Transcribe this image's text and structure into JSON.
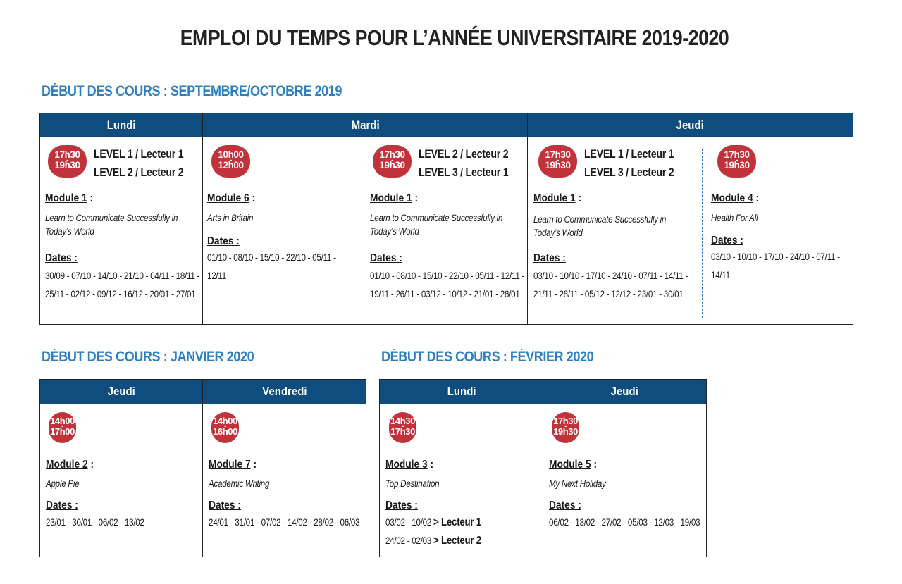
{
  "title": "EMPLOI DU TEMPS POUR L’ANNÉE UNIVERSITAIRE 2019-2020",
  "sections": {
    "sept": {
      "title": "DÉBUT DES COURS : SEPTEMBRE/OCTOBRE 2019",
      "days": [
        "Lundi",
        "Mardi",
        "Jeudi"
      ],
      "cells": [
        {
          "time_start": "17h30",
          "time_end": "19h30",
          "levels": [
            "LEVEL 1 / Lecteur 1",
            "LEVEL 2 / Lecteur 2"
          ],
          "module": "Module 1",
          "course": "Learn to Communicate Successfully in Today’s World",
          "dates_label": "Dates :",
          "dates": "30/09 - 07/10 - 14/10 - 21/10 - 04/11 - 18/11 - 25/11 - 02/12 - 09/12 - 16/12 - 20/01 - 27/01"
        },
        {
          "time_start": "10h00",
          "time_end": "12h00",
          "module": "Module 6",
          "course": "Arts in Britain",
          "dates_label": "Dates :",
          "dates": "01/10 - 08/10 - 15/10 - 22/10 - 05/11 - 12/11"
        },
        {
          "time_start": "17h30",
          "time_end": "19h30",
          "levels": [
            "LEVEL 2 / Lecteur 2",
            "LEVEL 3 / Lecteur 1"
          ],
          "module": "Module 1",
          "course": "Learn to Communicate Successfully in Today’s World",
          "dates_label": "Dates :",
          "dates": "01/10 - 08/10 - 15/10 - 22/10 - 05/11 - 12/11 - 19/11 - 26/11 - 03/12 - 10/12 - 21/01 - 28/01"
        },
        {
          "time_start": "17h30",
          "time_end": "19h30",
          "levels": [
            "LEVEL 1 / Lecteur 1",
            "LEVEL 3 / Lecteur 2"
          ],
          "module": "Module 1",
          "course": "Learn to Communicate Successfully in Today’s World",
          "dates_label": "Dates :",
          "dates": "03/10 - 10/10 - 17/10 - 24/10 - 07/11 - 14/11 - 21/11 - 28/11 - 05/12 - 12/12 - 23/01 - 30/01"
        },
        {
          "time_start": "17h30",
          "time_end": "19h30",
          "module": "Module 4",
          "course": "Health For All",
          "dates_label": "Dates :",
          "dates": "03/10 - 10/10 - 17/10 - 24/10 - 07/11 - 14/11"
        }
      ]
    },
    "jan": {
      "title": "DÉBUT DES COURS : JANVIER 2020",
      "days": [
        "Jeudi",
        "Vendredi"
      ],
      "cells": [
        {
          "time_start": "14h00",
          "time_end": "17h00",
          "module": "Module 2",
          "course": "Apple Pie",
          "dates_label": "Dates :",
          "dates": "23/01 - 30/01 - 06/02 - 13/02"
        },
        {
          "time_start": "14h00",
          "time_end": "16h00",
          "module": "Module 7",
          "course": "Academic Writing",
          "dates_label": "Dates :",
          "dates": "24/01 - 31/01 - 07/02 - 14/02 - 28/02 - 06/03"
        }
      ]
    },
    "feb": {
      "title": "DÉBUT DES COURS : FÉVRIER 2020",
      "days": [
        "Lundi",
        "Jeudi"
      ],
      "cells": [
        {
          "time_start": "14h30",
          "time_end": "17h30",
          "module": "Module 3",
          "course": "Top Destination",
          "dates_label": "Dates :",
          "date_line1": "03/02 - 10/02",
          "lecteur1": "> Lecteur 1",
          "date_line2": "24/02 - 02/03",
          "lecteur2": "> Lecteur 2"
        },
        {
          "time_start": "17h30",
          "time_end": "19h30",
          "module": "Module 5",
          "course": "My Next Holiday",
          "dates_label": "Dates :",
          "dates": "06/02 - 13/02 - 27/02 - 05/03 - 12/03 - 19/03"
        }
      ]
    }
  },
  "colors": {
    "header_bg": "#0e4d7d",
    "section_title": "#2a7fbf",
    "badge": "#c0333b",
    "dashed": "#2a7fbf"
  }
}
